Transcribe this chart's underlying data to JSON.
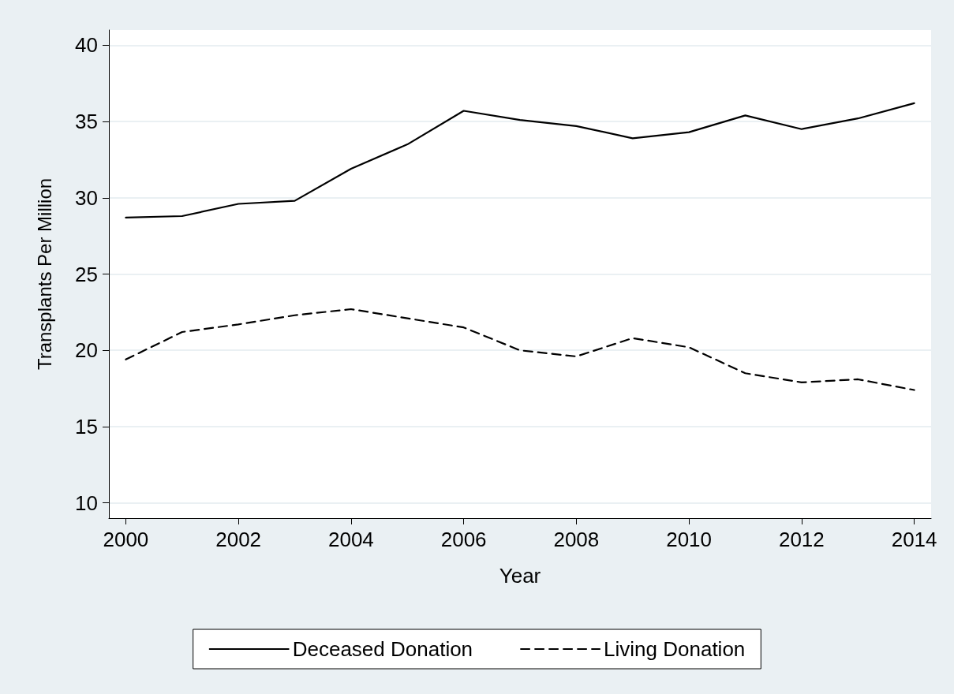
{
  "chart_data": {
    "type": "line",
    "xlabel": "Year",
    "ylabel": "Transplants Per Million",
    "x": [
      2000,
      2001,
      2002,
      2003,
      2004,
      2005,
      2006,
      2007,
      2008,
      2009,
      2010,
      2011,
      2012,
      2013,
      2014
    ],
    "series": [
      {
        "name": "Deceased Donation",
        "color": "#000000",
        "line_style": "solid",
        "values": [
          28.7,
          28.8,
          29.6,
          29.8,
          31.9,
          33.5,
          35.7,
          35.1,
          34.7,
          33.9,
          34.3,
          35.4,
          34.5,
          35.2,
          36.2
        ]
      },
      {
        "name": "Living Donation",
        "color": "#000000",
        "line_style": "dashed",
        "values": [
          19.4,
          21.2,
          21.7,
          22.3,
          22.7,
          22.1,
          21.5,
          20.0,
          19.6,
          20.8,
          20.2,
          18.5,
          17.9,
          18.1,
          17.4
        ]
      }
    ],
    "xlim": [
      1999.7,
      2014.3
    ],
    "xticks": [
      2000,
      2002,
      2004,
      2006,
      2008,
      2010,
      2012,
      2014
    ],
    "ylim": [
      9,
      41
    ],
    "yticks": [
      10,
      15,
      20,
      25,
      30,
      35,
      40
    ],
    "grid": "y",
    "legend": "bottom",
    "marker": "none"
  }
}
